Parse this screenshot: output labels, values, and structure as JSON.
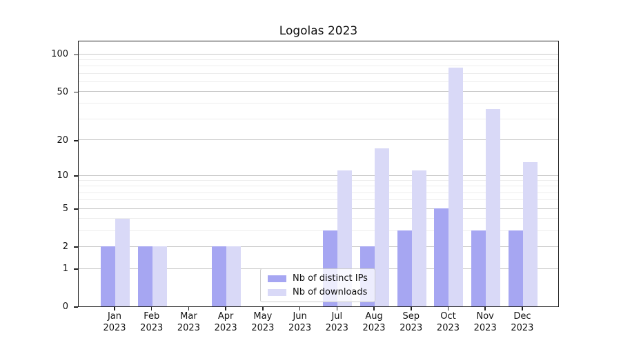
{
  "title": "Logolas 2023",
  "legend": {
    "items": [
      {
        "label": "Nb of distinct IPs"
      },
      {
        "label": "Nb of downloads"
      }
    ]
  },
  "chart_data": {
    "type": "bar",
    "title": "Logolas 2023",
    "categories": [
      "Jan 2023",
      "Feb 2023",
      "Mar 2023",
      "Apr 2023",
      "May 2023",
      "Jun 2023",
      "Jul 2023",
      "Aug 2023",
      "Sep 2023",
      "Oct 2023",
      "Nov 2023",
      "Dec 2023"
    ],
    "series": [
      {
        "name": "Nb of distinct IPs",
        "color": "#a6a6f2",
        "values": [
          2,
          2,
          0,
          2,
          0,
          0,
          3,
          2,
          3,
          5,
          3,
          3
        ]
      },
      {
        "name": "Nb of downloads",
        "color": "#d9d9f7",
        "values": [
          4,
          2,
          0,
          2,
          0,
          0,
          11,
          17,
          11,
          78,
          36,
          13
        ]
      }
    ],
    "yscale": "log1p",
    "ylim": [
      0,
      129
    ],
    "y_ticks": [
      0,
      1,
      2,
      5,
      10,
      20,
      50,
      100
    ],
    "y_minor_gridlines": [
      3,
      4,
      6,
      7,
      8,
      9,
      30,
      40,
      60,
      70,
      80,
      90
    ],
    "grid": "horizontal",
    "legend_position": "lower center",
    "colors": {
      "grid_major": "#c6c6c6",
      "grid_minor": "#ededed",
      "axis": "#1f1f1f",
      "text": "#111111"
    }
  }
}
